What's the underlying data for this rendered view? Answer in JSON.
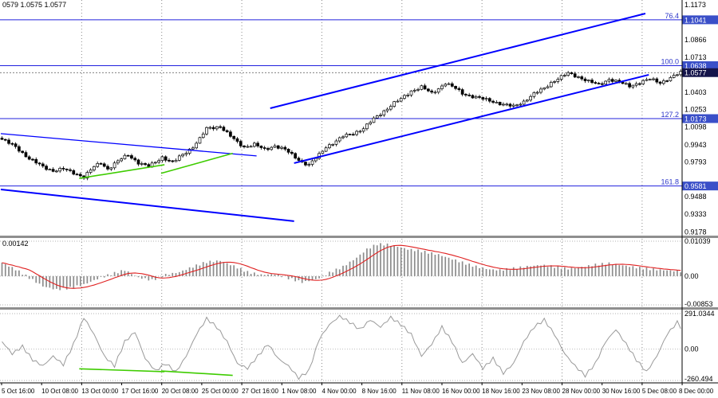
{
  "colors": {
    "background": "#ffffff",
    "trend_blue": "#0000ff",
    "fib_line": "#2020dd",
    "fib_tag_bg": "#3a4fc8",
    "current_tag_bg": "#14144a",
    "fib_label_text": "#2b35c8",
    "divergence_green": "#3ecc00",
    "macd_bar": "#8c8c8c",
    "signal_red": "#e02020",
    "cci_line": "#9a9a9a",
    "grid_gray": "#8a8a8a",
    "text": "#000000"
  },
  "layout_hints": {
    "panels": [
      "price-candlestick",
      "macd-histogram",
      "oscillator-line"
    ],
    "vertical_dashed_label_indices": [
      2,
      4,
      6,
      8,
      10,
      12,
      14,
      16
    ],
    "grid": "vertical dashed session lines, dotted indicator levels",
    "legend_position": "none"
  },
  "chart_data": [
    {
      "type": "candlestick",
      "info_text": "0579 1.0575 1.0577",
      "ylim": [
        0.9145,
        1.1215
      ],
      "n_candles": 200,
      "x_tick_labels": [
        "5 Oct 16:00",
        "10 Oct 08:00",
        "13 Oct 00:00",
        "17 Oct 16:00",
        "20 Oct 08:00",
        "25 Oct 00:00",
        "27 Oct 16:00",
        "1 Nov 08:00",
        "4 Nov 00:00",
        "8 Nov 16:00",
        "11 Nov 08:00",
        "16 Nov 00:00",
        "18 Nov 16:00",
        "23 Nov 08:00",
        "28 Nov 00:00",
        "30 Nov 16:00",
        "5 Dec 08:00",
        "8 Dec 00:00"
      ],
      "close_anchors": [
        [
          0,
          0.999
        ],
        [
          4,
          0.9925
        ],
        [
          8,
          0.982
        ],
        [
          12,
          0.975
        ],
        [
          15,
          0.9715
        ],
        [
          18,
          0.973
        ],
        [
          22,
          0.9685
        ],
        [
          24,
          0.966
        ],
        [
          27,
          0.975
        ],
        [
          29,
          0.9785
        ],
        [
          31,
          0.973
        ],
        [
          35,
          0.982
        ],
        [
          37,
          0.9855
        ],
        [
          40,
          0.9785
        ],
        [
          43,
          0.975
        ],
        [
          47,
          0.9835
        ],
        [
          50,
          0.9785
        ],
        [
          52,
          0.9835
        ],
        [
          56,
          0.9925
        ],
        [
          58,
          0.9995
        ],
        [
          60,
          1.0086
        ],
        [
          64,
          1.0105
        ],
        [
          66,
          1.0044
        ],
        [
          69,
          0.9965
        ],
        [
          71,
          0.9925
        ],
        [
          74,
          0.9946
        ],
        [
          77,
          0.99
        ],
        [
          80,
          0.9935
        ],
        [
          83,
          0.99
        ],
        [
          85,
          0.9855
        ],
        [
          88,
          0.979
        ],
        [
          90,
          0.9765
        ],
        [
          93,
          0.9855
        ],
        [
          95,
          0.9925
        ],
        [
          98,
          0.9975
        ],
        [
          100,
          1.0016
        ],
        [
          103,
          1.0044
        ],
        [
          106,
          1.0086
        ],
        [
          109,
          1.017
        ],
        [
          112,
          1.024
        ],
        [
          115,
          1.031
        ],
        [
          117,
          1.0345
        ],
        [
          120,
          1.0416
        ],
        [
          123,
          1.045
        ],
        [
          126,
          1.0395
        ],
        [
          128,
          1.0437
        ],
        [
          130,
          1.0486
        ],
        [
          133,
          1.0437
        ],
        [
          135,
          1.0395
        ],
        [
          138,
          1.0367
        ],
        [
          141,
          1.0345
        ],
        [
          144,
          1.0324
        ],
        [
          147,
          1.0296
        ],
        [
          150,
          1.028
        ],
        [
          153,
          1.0324
        ],
        [
          156,
          1.039
        ],
        [
          159,
          1.044
        ],
        [
          161,
          1.049
        ],
        [
          164,
          1.054
        ],
        [
          166,
          1.057
        ],
        [
          169,
          1.054
        ],
        [
          172,
          1.05
        ],
        [
          175,
          1.047
        ],
        [
          178,
          1.052
        ],
        [
          181,
          1.049
        ],
        [
          184,
          1.046
        ],
        [
          187,
          1.049
        ],
        [
          190,
          1.052
        ],
        [
          193,
          1.049
        ],
        [
          196,
          1.053
        ],
        [
          199,
          1.0577
        ]
      ],
      "current_price": {
        "text": "1.0577",
        "value": 1.0577
      },
      "y_axis_plain_labels": [
        "1.1173",
        "1.0866",
        "1.0713",
        "1.0403",
        "1.0253",
        "1.0098",
        "0.9943",
        "0.9793",
        "0.9488",
        "0.9333",
        "0.9178"
      ],
      "y_axis_tags": [
        {
          "text": "1.1041",
          "value": 1.1041,
          "style": "fib"
        },
        {
          "text": "1.0638",
          "value": 1.0638,
          "style": "fib"
        },
        {
          "text": "1.0577",
          "value": 1.0577,
          "style": "current"
        },
        {
          "text": "1.0173",
          "value": 1.0173,
          "style": "fib"
        },
        {
          "text": "0.9581",
          "value": 0.9581,
          "style": "fib"
        }
      ],
      "fib_levels": [
        {
          "label": "76.4",
          "value": 1.1041
        },
        {
          "label": "100.0",
          "value": 1.0638
        },
        {
          "label": "127.2",
          "value": 1.0173
        },
        {
          "label": "161.8",
          "value": 0.9581
        }
      ],
      "trendlines": [
        {
          "name": "descending-trendline-upper",
          "color": "#0000ff",
          "width": 1.3,
          "from": [
            0,
            1.0041
          ],
          "to": [
            75,
            0.9845
          ]
        },
        {
          "name": "descending-trendline-lower",
          "color": "#0000ff",
          "width": 2,
          "from": [
            0,
            0.9551
          ],
          "to": [
            86,
            0.9272
          ]
        },
        {
          "name": "ascending-channel-upper",
          "color": "#0000ff",
          "width": 2,
          "from": [
            79,
            1.0264
          ],
          "to": [
            189,
            1.1096
          ]
        },
        {
          "name": "ascending-channel-lower",
          "color": "#0000ff",
          "width": 2,
          "from": [
            86,
            0.9782
          ],
          "to": [
            190,
            1.0558
          ]
        },
        {
          "name": "bullish-divergence-line-1",
          "color": "#3ecc00",
          "width": 1.6,
          "from": [
            23,
            0.9648
          ],
          "to": [
            48,
            0.9768
          ]
        },
        {
          "name": "bullish-divergence-line-2",
          "color": "#3ecc00",
          "width": 1.6,
          "from": [
            47,
            0.9692
          ],
          "to": [
            68,
            0.9868
          ]
        }
      ],
      "candle_up_fill": "#ffffff",
      "candle_down_fill": "#000000",
      "candle_outline": "#000000"
    },
    {
      "type": "macd_histogram",
      "current_value_text": "0.00142",
      "ylim": [
        -0.00853,
        0.01039
      ],
      "axis_labels": [
        {
          "text": "0.01039",
          "value": 0.01039
        },
        {
          "text": "0.00",
          "value": 0
        },
        {
          "text": "-0.00853",
          "value": -0.00853
        }
      ],
      "bar_anchors": [
        [
          0,
          0.004
        ],
        [
          4,
          0.002
        ],
        [
          8,
          -0.0005
        ],
        [
          12,
          -0.003
        ],
        [
          16,
          -0.004
        ],
        [
          20,
          -0.0035
        ],
        [
          24,
          -0.0025
        ],
        [
          28,
          -0.0008
        ],
        [
          32,
          0.0006
        ],
        [
          36,
          0.0018
        ],
        [
          40,
          -0.0004
        ],
        [
          44,
          -0.0012
        ],
        [
          48,
          0.0004
        ],
        [
          52,
          0.0012
        ],
        [
          56,
          0.0028
        ],
        [
          60,
          0.0042
        ],
        [
          64,
          0.0046
        ],
        [
          68,
          0.003
        ],
        [
          72,
          0.0012
        ],
        [
          76,
          0.0004
        ],
        [
          80,
          0.0006
        ],
        [
          84,
          -0.0006
        ],
        [
          88,
          -0.0018
        ],
        [
          92,
          -0.001
        ],
        [
          96,
          0.001
        ],
        [
          100,
          0.0028
        ],
        [
          104,
          0.0055
        ],
        [
          107,
          0.008
        ],
        [
          110,
          0.0095
        ],
        [
          113,
          0.0094
        ],
        [
          116,
          0.0088
        ],
        [
          119,
          0.008
        ],
        [
          122,
          0.0076
        ],
        [
          125,
          0.007
        ],
        [
          128,
          0.0064
        ],
        [
          131,
          0.0054
        ],
        [
          134,
          0.0044
        ],
        [
          137,
          0.0034
        ],
        [
          140,
          0.0026
        ],
        [
          143,
          0.002
        ],
        [
          146,
          0.0018
        ],
        [
          150,
          0.0023
        ],
        [
          154,
          0.0029
        ],
        [
          158,
          0.0033
        ],
        [
          162,
          0.0028
        ],
        [
          166,
          0.0022
        ],
        [
          170,
          0.0027
        ],
        [
          174,
          0.0034
        ],
        [
          178,
          0.0038
        ],
        [
          182,
          0.0032
        ],
        [
          186,
          0.0026
        ],
        [
          190,
          0.0021
        ],
        [
          194,
          0.0018
        ],
        [
          199,
          0.00142
        ]
      ],
      "bar_color": "#8c8c8c",
      "signal_color": "#e02020"
    },
    {
      "type": "oscillator_line",
      "ylim": [
        -260.494,
        291.0344
      ],
      "axis_labels": [
        {
          "text": "291.0344",
          "value": 291.0344
        },
        {
          "text": "0.00",
          "value": 0
        },
        {
          "text": "-260.494",
          "value": -260.494
        }
      ],
      "value_anchors": [
        [
          0,
          60
        ],
        [
          3,
          -40
        ],
        [
          6,
          20
        ],
        [
          9,
          -90
        ],
        [
          12,
          -140
        ],
        [
          15,
          -60
        ],
        [
          18,
          -130
        ],
        [
          21,
          40
        ],
        [
          24,
          260
        ],
        [
          27,
          120
        ],
        [
          30,
          -60
        ],
        [
          33,
          -140
        ],
        [
          36,
          60
        ],
        [
          39,
          140
        ],
        [
          42,
          -80
        ],
        [
          45,
          -180
        ],
        [
          48,
          -120
        ],
        [
          51,
          -190
        ],
        [
          54,
          -60
        ],
        [
          57,
          120
        ],
        [
          60,
          250
        ],
        [
          63,
          180
        ],
        [
          66,
          60
        ],
        [
          69,
          -120
        ],
        [
          72,
          -160
        ],
        [
          75,
          -60
        ],
        [
          78,
          40
        ],
        [
          81,
          -80
        ],
        [
          84,
          -140
        ],
        [
          87,
          -240
        ],
        [
          90,
          -180
        ],
        [
          93,
          80
        ],
        [
          96,
          200
        ],
        [
          99,
          270
        ],
        [
          102,
          220
        ],
        [
          105,
          160
        ],
        [
          108,
          240
        ],
        [
          111,
          180
        ],
        [
          114,
          260
        ],
        [
          117,
          200
        ],
        [
          120,
          120
        ],
        [
          123,
          -60
        ],
        [
          126,
          40
        ],
        [
          129,
          180
        ],
        [
          132,
          60
        ],
        [
          135,
          -120
        ],
        [
          138,
          -40
        ],
        [
          141,
          -160
        ],
        [
          144,
          -80
        ],
        [
          147,
          -200
        ],
        [
          150,
          -120
        ],
        [
          153,
          60
        ],
        [
          156,
          180
        ],
        [
          159,
          240
        ],
        [
          162,
          120
        ],
        [
          165,
          -40
        ],
        [
          168,
          -140
        ],
        [
          171,
          -220
        ],
        [
          174,
          -120
        ],
        [
          177,
          60
        ],
        [
          180,
          160
        ],
        [
          183,
          40
        ],
        [
          186,
          -90
        ],
        [
          189,
          -190
        ],
        [
          192,
          -60
        ],
        [
          195,
          120
        ],
        [
          198,
          220
        ],
        [
          199,
          180
        ]
      ],
      "line_color": "#9a9a9a",
      "divergence_lines": [
        {
          "from": [
            23,
            -164
          ],
          "to": [
            48,
            -188
          ]
        },
        {
          "from": [
            47,
            -182
          ],
          "to": [
            68,
            -218
          ]
        }
      ],
      "divergence_color": "#3ecc00"
    }
  ]
}
